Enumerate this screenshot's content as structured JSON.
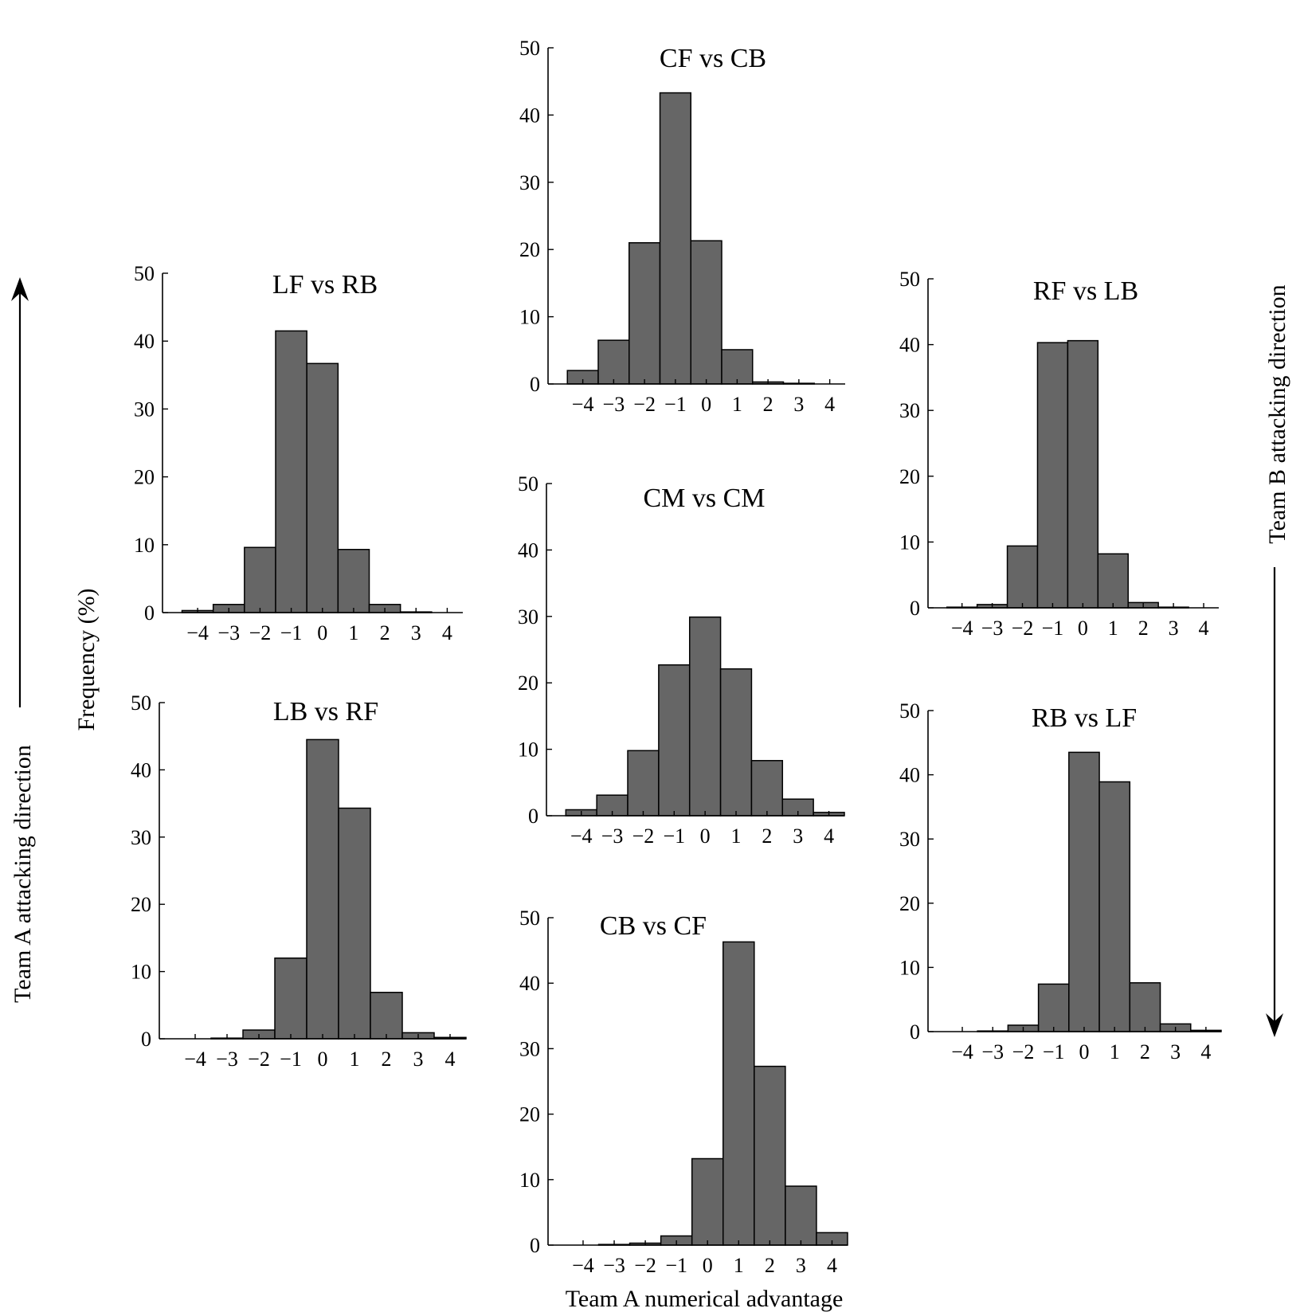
{
  "figure": {
    "ylabel": "Frequency (%)",
    "xlabel": "Team A numerical advantage",
    "left_arrow_label": "Team A attacking direction",
    "right_arrow_label": "Team B attacking direction"
  },
  "chart_data": [
    {
      "id": "cf-vs-cb",
      "type": "bar",
      "title": "CF vs CB",
      "categories": [
        -4,
        -3,
        -2,
        -1,
        0,
        1,
        2,
        3,
        4
      ],
      "values": [
        2.0,
        6.5,
        21.0,
        43.3,
        21.3,
        5.1,
        0.3,
        0.1,
        0.0
      ],
      "xticks": [
        "−4",
        "−3",
        "−2",
        "−1",
        "0",
        "1",
        "2",
        "3",
        "4"
      ],
      "yticks": [
        0,
        10,
        20,
        30,
        40,
        50
      ],
      "ylim": [
        0,
        50
      ]
    },
    {
      "id": "lf-vs-rb",
      "type": "bar",
      "title": "LF vs RB",
      "categories": [
        -4,
        -3,
        -2,
        -1,
        0,
        1,
        2,
        3,
        4
      ],
      "values": [
        0.3,
        1.2,
        9.6,
        41.5,
        36.7,
        9.3,
        1.2,
        0.1,
        0.0
      ],
      "xticks": [
        "−4",
        "−3",
        "−2",
        "−1",
        "0",
        "1",
        "2",
        "3",
        "4"
      ],
      "yticks": [
        0,
        10,
        20,
        30,
        40,
        50
      ],
      "ylim": [
        0,
        50
      ]
    },
    {
      "id": "rf-vs-lb",
      "type": "bar",
      "title": "RF vs LB",
      "categories": [
        -4,
        -3,
        -2,
        -1,
        0,
        1,
        2,
        3,
        4
      ],
      "values": [
        0.1,
        0.5,
        9.4,
        40.3,
        40.6,
        8.2,
        0.8,
        0.1,
        0.0
      ],
      "xticks": [
        "−4",
        "−3",
        "−2",
        "−1",
        "0",
        "1",
        "2",
        "3",
        "4"
      ],
      "yticks": [
        0,
        10,
        20,
        30,
        40,
        50
      ],
      "ylim": [
        0,
        50
      ]
    },
    {
      "id": "cm-vs-cm",
      "type": "bar",
      "title": "CM vs CM",
      "categories": [
        -4,
        -3,
        -2,
        -1,
        0,
        1,
        2,
        3,
        4
      ],
      "values": [
        0.9,
        3.1,
        9.8,
        22.7,
        29.9,
        22.1,
        8.3,
        2.5,
        0.5
      ],
      "xticks": [
        "−4",
        "−3",
        "−2",
        "−1",
        "0",
        "1",
        "2",
        "3",
        "4"
      ],
      "yticks": [
        0,
        10,
        20,
        30,
        40,
        50
      ],
      "ylim": [
        0,
        50
      ]
    },
    {
      "id": "lb-vs-rf",
      "type": "bar",
      "title": "LB vs RF",
      "categories": [
        -4,
        -3,
        -2,
        -1,
        0,
        1,
        2,
        3,
        4
      ],
      "values": [
        0.0,
        0.1,
        1.3,
        12.0,
        44.5,
        34.3,
        6.9,
        0.9,
        0.2
      ],
      "xticks": [
        "−4",
        "−3",
        "−2",
        "−1",
        "0",
        "1",
        "2",
        "3",
        "4"
      ],
      "yticks": [
        0,
        10,
        20,
        30,
        40,
        50
      ],
      "ylim": [
        0,
        50
      ]
    },
    {
      "id": "rb-vs-lf",
      "type": "bar",
      "title": "RB vs LF",
      "categories": [
        -4,
        -3,
        -2,
        -1,
        0,
        1,
        2,
        3,
        4
      ],
      "values": [
        0.0,
        0.1,
        1.0,
        7.4,
        43.5,
        38.9,
        7.6,
        1.2,
        0.2
      ],
      "xticks": [
        "−4",
        "−3",
        "−2",
        "−1",
        "0",
        "1",
        "2",
        "3",
        "4"
      ],
      "yticks": [
        0,
        10,
        20,
        30,
        40,
        50
      ],
      "ylim": [
        0,
        50
      ]
    },
    {
      "id": "cb-vs-cf",
      "type": "bar",
      "title": "CB vs CF",
      "categories": [
        -4,
        -3,
        -2,
        -1,
        0,
        1,
        2,
        3,
        4
      ],
      "values": [
        0.0,
        0.1,
        0.3,
        1.4,
        13.2,
        46.3,
        27.3,
        9.0,
        1.9
      ],
      "xticks": [
        "−4",
        "−3",
        "−2",
        "−1",
        "0",
        "1",
        "2",
        "3",
        "4"
      ],
      "yticks": [
        0,
        10,
        20,
        30,
        40,
        50
      ],
      "ylim": [
        0,
        50
      ]
    }
  ]
}
